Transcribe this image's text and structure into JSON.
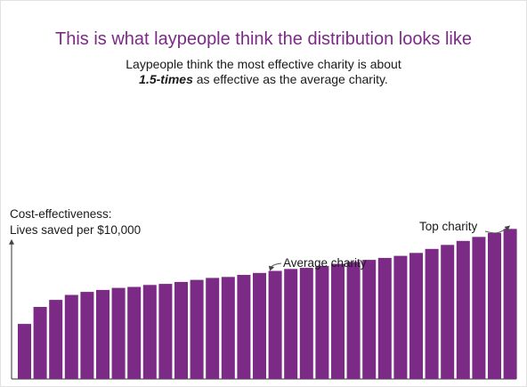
{
  "chart_data": {
    "type": "bar",
    "title": "This is what laypeople think the distribution looks like",
    "subtitle": {
      "line1": "Laypeople think the most effective charity is about",
      "line2_emphasis": "1.5-times",
      "line2_rest": " as effective as the average charity."
    },
    "ylabel_line1": "Cost-effectiveness:",
    "ylabel_line2": "Lives saved per $10,000",
    "values": [
      0.55,
      0.72,
      0.79,
      0.84,
      0.87,
      0.89,
      0.91,
      0.92,
      0.94,
      0.95,
      0.97,
      0.99,
      1.01,
      1.02,
      1.04,
      1.06,
      1.08,
      1.1,
      1.11,
      1.13,
      1.15,
      1.17,
      1.19,
      1.21,
      1.23,
      1.26,
      1.3,
      1.34,
      1.38,
      1.42,
      1.46,
      1.5
    ],
    "ylim": [
      0,
      1.6
    ],
    "grid": false,
    "bar_color": "#7b2a86",
    "annotations": [
      {
        "label": "Average charity",
        "bar_index": 16
      },
      {
        "label": "Top charity",
        "bar_index": 31
      }
    ]
  }
}
